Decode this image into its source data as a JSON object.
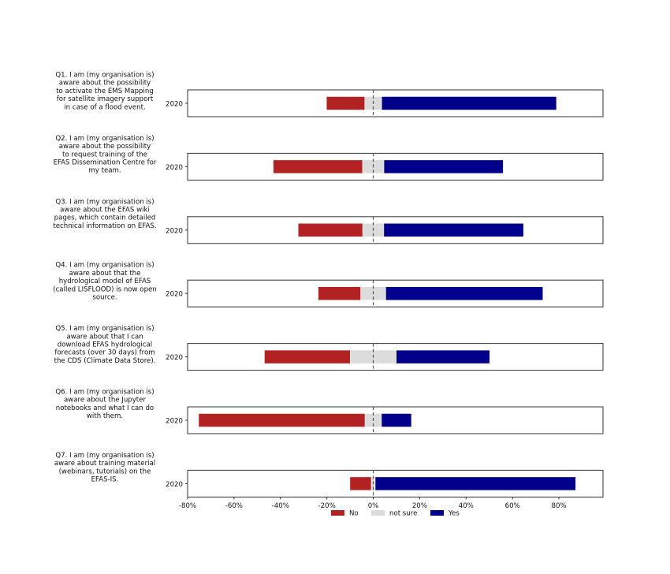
{
  "chart_data": [
    {
      "type": "bar",
      "orientation": "horizontal-diverging-stacked",
      "xlim": [
        -80,
        99
      ],
      "xticks": [
        "-80%",
        "-60%",
        "-40%",
        "-20%",
        "0%",
        "20%",
        "40%",
        "60%",
        "80%"
      ],
      "xtick_values": [
        -80,
        -60,
        -40,
        -20,
        0,
        20,
        40,
        60,
        80
      ],
      "reference_line": 0,
      "legend": {
        "placement": "bottom-center",
        "entries": [
          "No",
          "not sure",
          "Yes"
        ]
      },
      "colors": {
        "No": "#b22222",
        "not sure": "#dcdcdc",
        "Yes": "#00008b"
      },
      "category_label": "2020",
      "questions": [
        {
          "label": [
            "Q1. I am (my organisation is)",
            "aware about  the possibility",
            "to activate the EMS Mapping",
            "for satellite imagery support",
            "in case of a flood event."
          ],
          "No": 16.5,
          "not sure": 7.3,
          "Yes": 75.3
        },
        {
          "label": [
            "Q2. I am (my organisation is)",
            "aware about  the possibility",
            "to request training of the",
            "EFAS Dissemination Centre for",
            "my team."
          ],
          "No": 38.5,
          "not sure": 9.2,
          "Yes": 51.4
        },
        {
          "label": [
            "Q3. I am (my organisation is)",
            "aware about  the EFAS wiki",
            "pages, which contain detailed",
            "technical information on EFAS."
          ],
          "No": 27.8,
          "not sure": 9.1,
          "Yes": 60.2
        },
        {
          "label": [
            "Q4. I am (my organisation is)",
            "aware about  that the",
            "hydrological model of EFAS",
            "(called LISFLOOD) is now open",
            "source."
          ],
          "No": 18.3,
          "not sure": 10.8,
          "Yes": 67.7
        },
        {
          "label": [
            "Q5. I am (my organisation is)",
            "aware about  that I can",
            "download EFAS hydrological",
            "forecasts (over 30 days) from",
            "the CDS (Climate Data Store)."
          ],
          "No": 37.0,
          "not sure": 19.8,
          "Yes": 40.3
        },
        {
          "label": [
            "Q6. I am (my organisation is)",
            "aware about  the Jupyter",
            "notebooks and what I can do",
            "with them."
          ],
          "No": 71.7,
          "not sure": 7.1,
          "Yes": 12.9
        },
        {
          "label": [
            "Q7. I am (my organisation is)",
            "aware about  training material",
            "(webinars, tutorials) on the",
            "EFAS-IS."
          ],
          "No": 9.2,
          "not sure": 1.7,
          "Yes": 86.4
        }
      ]
    }
  ]
}
